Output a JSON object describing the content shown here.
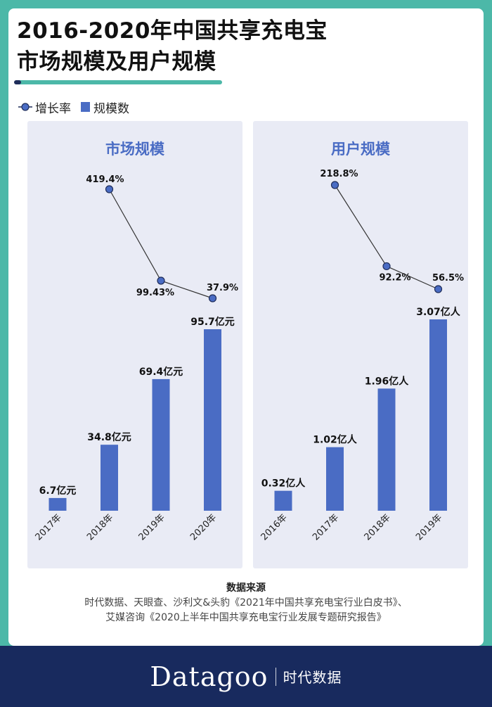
{
  "title_line1": "2016-2020年中国共享充电宝",
  "title_line2": "市场规模及用户规模",
  "legend": {
    "line": "增长率",
    "bar": "规模数"
  },
  "colors": {
    "background": "#4cb8a8",
    "bar": "#4a6cc4",
    "footer": "#182a5e",
    "panel": "#e9ebf5"
  },
  "chart_data": [
    {
      "type": "bar",
      "title": "市场规模",
      "categories": [
        "2017年",
        "2018年",
        "2019年",
        "2020年"
      ],
      "values": [
        6.7,
        34.8,
        69.4,
        95.7
      ],
      "value_labels": [
        "6.7亿元",
        "34.8亿元",
        "69.4亿元",
        "95.7亿元"
      ],
      "line": {
        "categories": [
          "2018年",
          "2019年",
          "2020年"
        ],
        "values": [
          419.4,
          99.43,
          37.9
        ],
        "labels": [
          "419.4%",
          "99.43%",
          "37.9%"
        ]
      }
    },
    {
      "type": "bar",
      "title": "用户规模",
      "categories": [
        "2016年",
        "2017年",
        "2018年",
        "2019年"
      ],
      "values": [
        0.32,
        1.02,
        1.96,
        3.07
      ],
      "value_labels": [
        "0.32亿人",
        "1.02亿人",
        "1.96亿人",
        "3.07亿人"
      ],
      "line": {
        "categories": [
          "2017年",
          "2018年",
          "2019年"
        ],
        "values": [
          218.8,
          92.2,
          56.5
        ],
        "labels": [
          "218.8%",
          "92.2%",
          "56.5%"
        ]
      }
    }
  ],
  "source": {
    "title": "数据来源",
    "line1": "时代数据、天眼查、沙利文&头豹《2021年中国共享充电宝行业白皮书》、",
    "line2": "艾媒咨询《2020上半年中国共享充电宝行业发展专题研究报告》"
  },
  "footer": {
    "brand": "Datagoo",
    "brand_cn": "时代数据"
  }
}
